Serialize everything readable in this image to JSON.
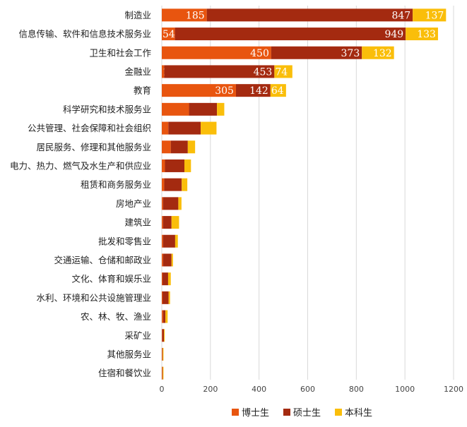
{
  "chart_data": {
    "type": "bar",
    "orientation": "horizontal",
    "stacked": true,
    "categories": [
      "制造业",
      "信息传输、软件和信息技术服务业",
      "卫生和社会工作",
      "金融业",
      "教育",
      "科学研究和技术服务业",
      "公共管理、社会保障和社会组织",
      "居民服务、修理和其他服务业",
      "电力、热力、燃气及水生产和供应业",
      "租赁和商务服务业",
      "房地产业",
      "建筑业",
      "批发和零售业",
      "交通运输、仓储和邮政业",
      "文化、体育和娱乐业",
      "水利、环境和公共设施管理业",
      "农、林、牧、渔业",
      "采矿业",
      "其他服务业",
      "住宿和餐饮业"
    ],
    "series": [
      {
        "name": "博士生",
        "color": "#E8550F",
        "values": [
          185,
          54,
          450,
          10,
          305,
          112,
          27,
          37,
          13,
          10,
          5,
          5,
          5,
          5,
          3,
          3,
          5,
          2,
          2,
          2
        ],
        "labels": [
          "185",
          "54",
          "450",
          "10",
          "305",
          "",
          "",
          "",
          "",
          "",
          "",
          "",
          "",
          "",
          "",
          "",
          "",
          "",
          "",
          ""
        ]
      },
      {
        "name": "硕士生",
        "color": "#A42A10",
        "values": [
          847,
          949,
          373,
          453,
          142,
          115,
          133,
          70,
          80,
          72,
          63,
          35,
          50,
          35,
          23,
          25,
          10,
          7,
          2,
          2
        ],
        "labels": [
          "847",
          "949",
          "373",
          "453",
          "142",
          "",
          "",
          "",
          "",
          "",
          "",
          "",
          "",
          "",
          "",
          "",
          "",
          "",
          "",
          ""
        ]
      },
      {
        "name": "本科生",
        "color": "#FABE0A",
        "values": [
          137,
          133,
          132,
          74,
          64,
          30,
          65,
          30,
          27,
          23,
          13,
          31,
          11,
          6,
          11,
          6,
          9,
          3,
          3,
          3
        ],
        "labels": [
          "137",
          "133",
          "132",
          "74",
          "64",
          "",
          "",
          "",
          "",
          "",
          "",
          "",
          "",
          "",
          "",
          "",
          "",
          "",
          "",
          ""
        ]
      }
    ],
    "xlim": [
      0,
      1200
    ],
    "xticks": [
      "0",
      "200",
      "400",
      "600",
      "800",
      "1000",
      "1200"
    ],
    "grid": "vertical",
    "legend_position": "bottom"
  }
}
